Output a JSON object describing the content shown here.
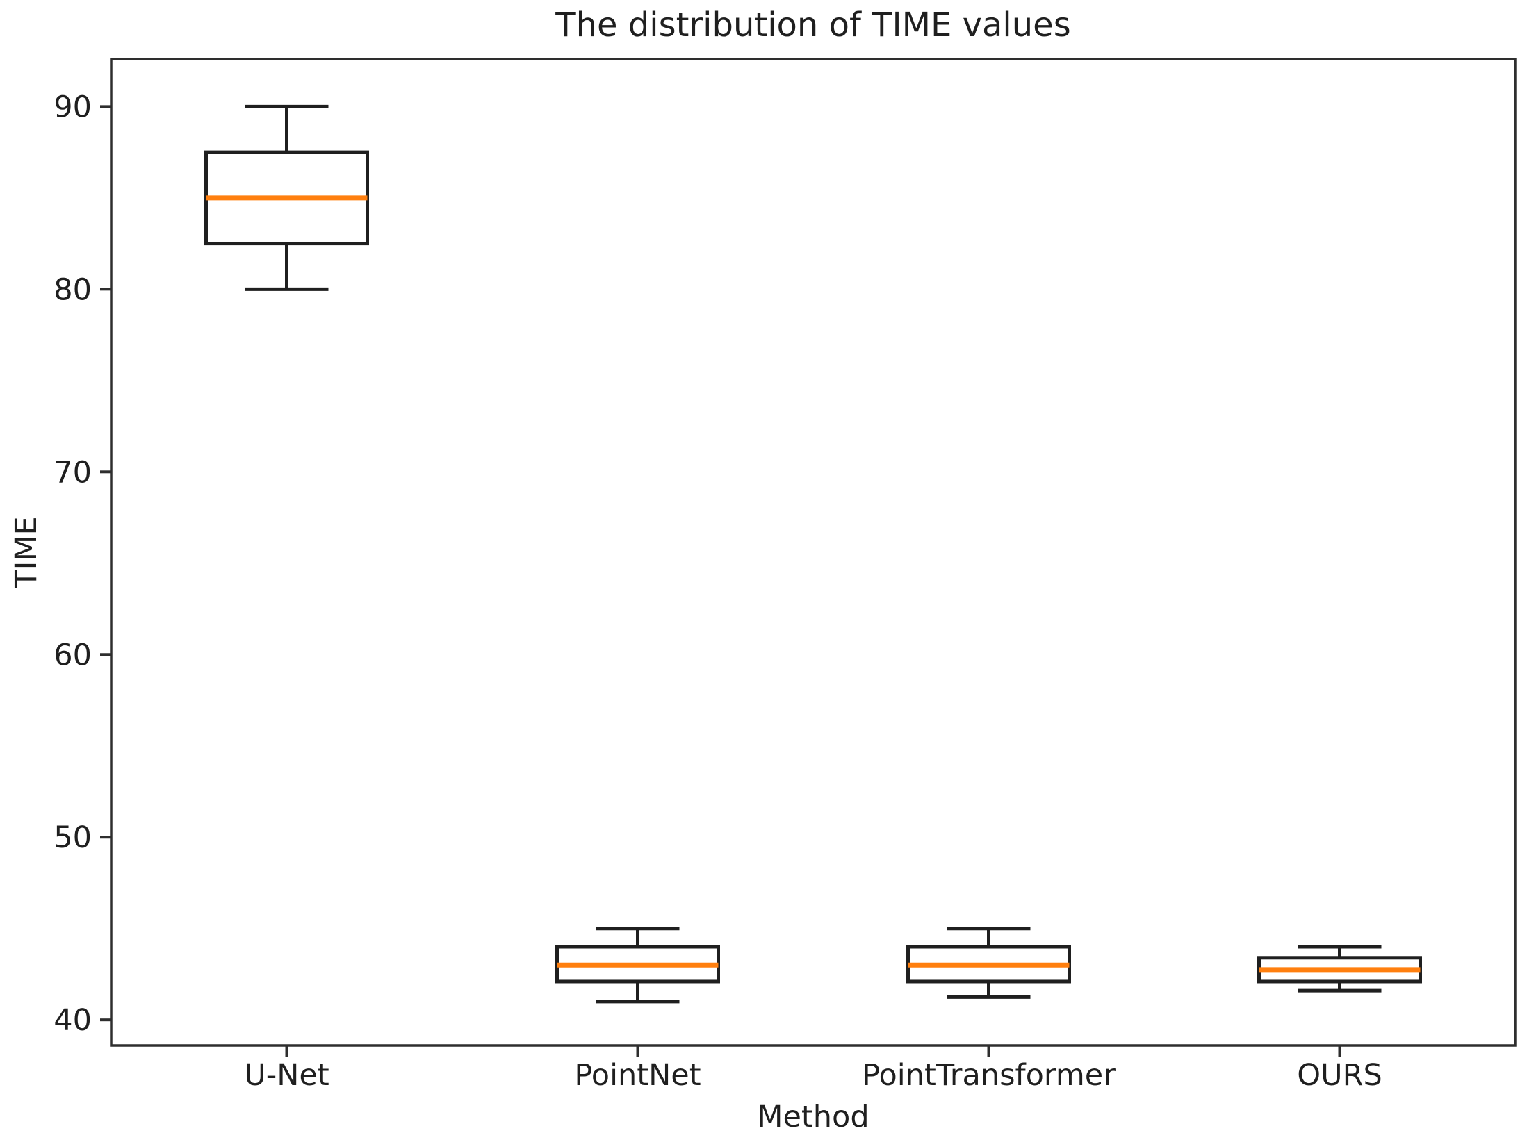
{
  "chart_data": {
    "type": "boxplot",
    "title": "The distribution of TIME values",
    "xlabel": "Method",
    "ylabel": "TIME",
    "categories": [
      "U-Net",
      "PointNet",
      "PointTransformer",
      "OURS"
    ],
    "series": [
      {
        "name": "U-Net",
        "whisker_low": 80,
        "q1": 82.5,
        "median": 85,
        "q3": 87.5,
        "whisker_high": 90
      },
      {
        "name": "PointNet",
        "whisker_low": 41,
        "q1": 42.1,
        "median": 43,
        "q3": 44,
        "whisker_high": 45
      },
      {
        "name": "PointTransformer",
        "whisker_low": 41.25,
        "q1": 42.1,
        "median": 43,
        "q3": 44,
        "whisker_high": 45
      },
      {
        "name": "OURS",
        "whisker_low": 41.6,
        "q1": 42.1,
        "median": 42.75,
        "q3": 43.4,
        "whisker_high": 44
      }
    ],
    "yticks": [
      40,
      50,
      60,
      70,
      80,
      90
    ],
    "ylim": [
      38.6,
      92.6
    ],
    "grid": false,
    "legend": "none",
    "outliers": [],
    "colors": {
      "box_line": "#1f1f1f",
      "whisker_line": "#1f1f1f",
      "median_line": "#ff7f0e",
      "spine": "#2e2e2e",
      "text": "#1f1f1f",
      "background": "#ffffff"
    }
  }
}
